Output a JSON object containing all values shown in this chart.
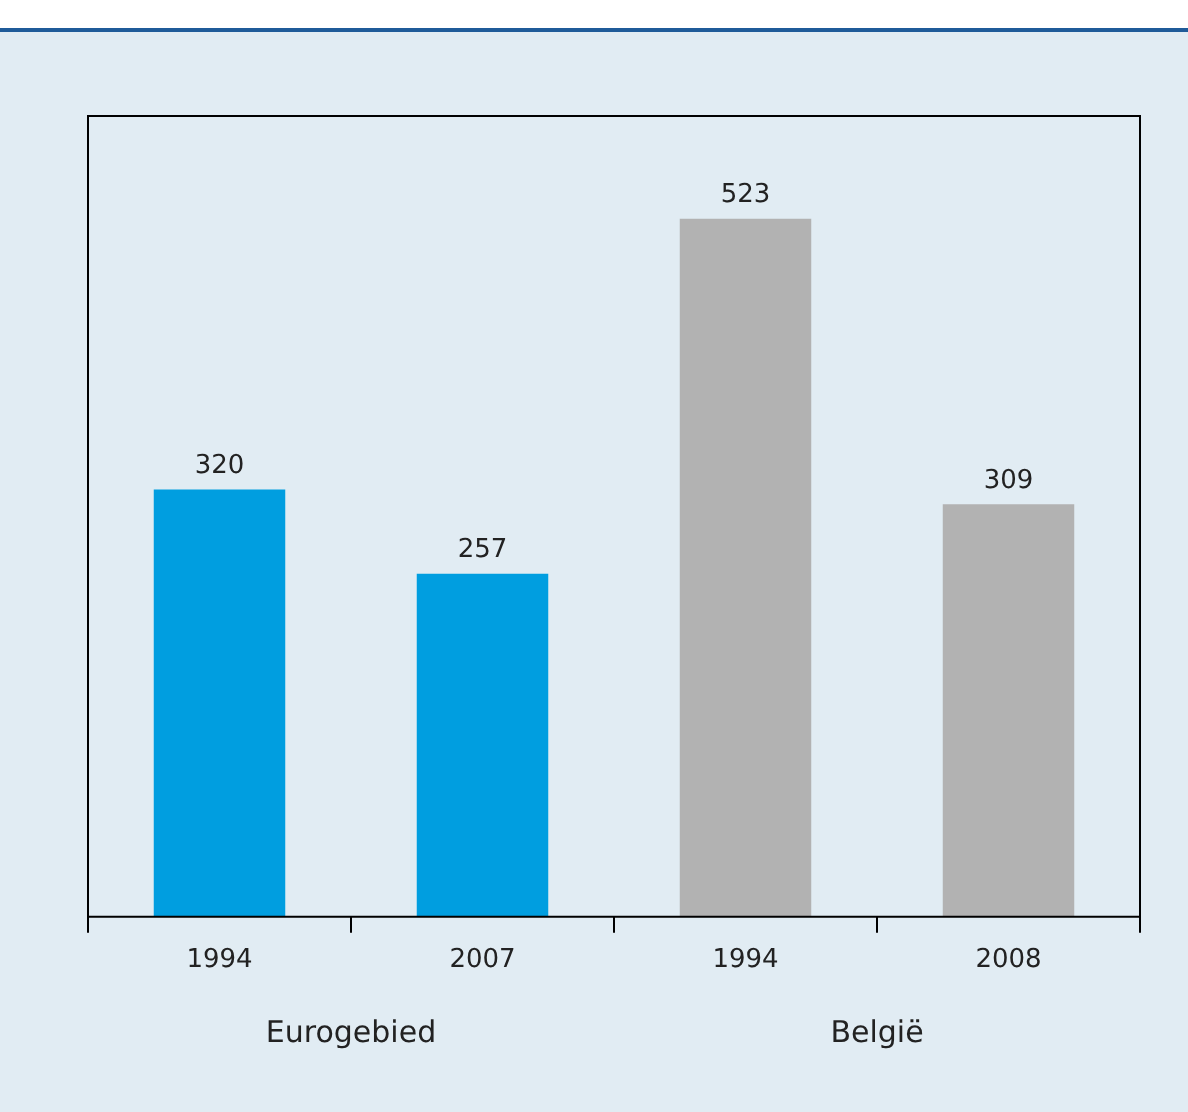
{
  "chart_data": {
    "type": "bar",
    "categories": [
      "1994",
      "2007",
      "1994",
      "2008"
    ],
    "values": [
      320,
      257,
      523,
      309
    ],
    "colors": [
      "#009ee0",
      "#009ee0",
      "#b2b2b2",
      "#b2b2b2"
    ],
    "data_labels": true,
    "annotations": [
      "Eurogebied",
      "België"
    ]
  }
}
